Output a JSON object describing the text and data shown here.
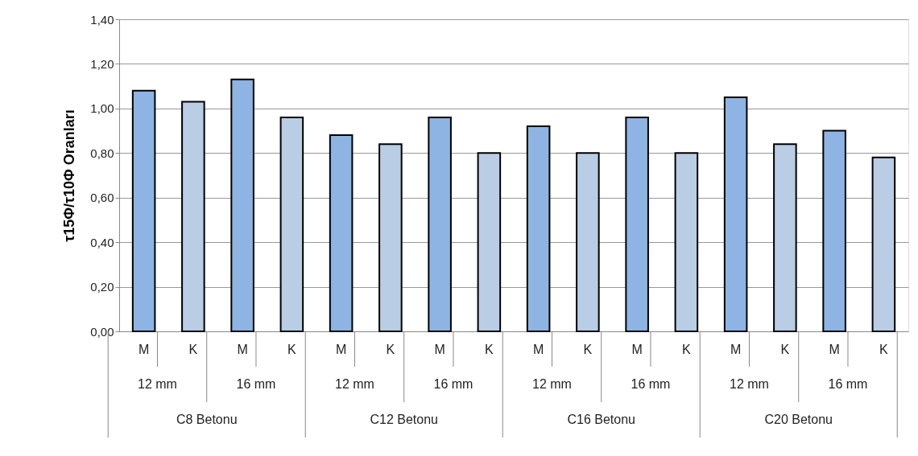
{
  "chart_data": {
    "type": "bar",
    "ylabel": "τ15Φ/τ10Φ Oranları",
    "categories": [
      "M",
      "K",
      "M",
      "K",
      "M",
      "K",
      "M",
      "K",
      "M",
      "K",
      "M",
      "K",
      "M",
      "K",
      "M",
      "K"
    ],
    "values": [
      1.08,
      1.03,
      1.13,
      0.96,
      0.88,
      0.84,
      0.96,
      0.8,
      0.92,
      0.8,
      0.96,
      0.8,
      1.05,
      0.84,
      0.9,
      0.78
    ],
    "colors": [
      "#8eb4e3",
      "#b9cde5",
      "#8eb4e3",
      "#b9cde5",
      "#8eb4e3",
      "#b9cde5",
      "#8eb4e3",
      "#b9cde5",
      "#8eb4e3",
      "#b9cde5",
      "#8eb4e3",
      "#b9cde5",
      "#8eb4e3",
      "#b9cde5",
      "#8eb4e3",
      "#b9cde5"
    ],
    "ylim": [
      0,
      1.4
    ],
    "yticks": [
      {
        "value": 0,
        "label": "0,00"
      },
      {
        "value": 0.2,
        "label": "0,20"
      },
      {
        "value": 0.4,
        "label": "0,40"
      },
      {
        "value": 0.6,
        "label": "0,60"
      },
      {
        "value": 0.8,
        "label": "0,80"
      },
      {
        "value": 1.0,
        "label": "1,00"
      },
      {
        "value": 1.2,
        "label": "1,20"
      },
      {
        "value": 1.4,
        "label": "1,40"
      }
    ],
    "grid": "y",
    "annotations": [
      "12 mm",
      "16 mm",
      "12 mm",
      "16 mm",
      "12 mm",
      "16 mm",
      "12 mm",
      "16 mm",
      "C8 Betonu",
      "C12 Betonu",
      "C16 Betonu",
      "C20 Betonu"
    ]
  }
}
